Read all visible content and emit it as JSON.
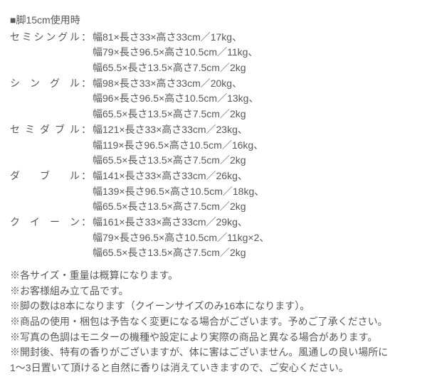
{
  "header": "■脚15cm使用時",
  "specs": [
    {
      "label": "セミシングル",
      "lines": [
        "幅81×長さ33×高さ33cm／17kg、",
        "幅79×長さ96.5×高さ10.5cm／11kg、",
        "幅65.5×長さ13.5×高さ7.5cm／2kg"
      ]
    },
    {
      "label": "シ　ン　グ　ル",
      "lines": [
        "幅98×長さ33×高さ33cm／20kg、",
        "幅96×長さ96.5×高さ10.5cm／13kg、",
        "幅65.5×長さ13.5×高さ7.5cm／2kg"
      ]
    },
    {
      "label": "セミダブル",
      "lines": [
        "幅121×長さ33×高さ33cm／23kg、",
        "幅119×長さ96.5×高さ10.5cm／16kg、",
        "幅65.5×長さ13.5×高さ7.5cm／2kg"
      ]
    },
    {
      "label": "ダ　　ブ　　ル",
      "lines": [
        "幅141×長さ33×高さ33cm／26kg、",
        "幅139×長さ96.5×高さ10.5cm／18kg、",
        "幅65.5×長さ13.5×高さ7.5cm／2kg"
      ]
    },
    {
      "label": "ク　イ　ー　ン",
      "lines": [
        "幅161×長さ33×高さ33cm／29kg、",
        "幅79×長さ96.5×高さ10.5cm／11kg×2、",
        "幅65.5×長さ13.5×高さ7.5cm／2kg"
      ]
    }
  ],
  "notes": [
    "※各サイズ・重量は概算になります。",
    "※お客様組み立て品です。",
    "※脚の数は8本になります（クイーンサイズのみ16本になります）。",
    "※商品の使用・梱包は予告なく変更になる場合がございます。予めご了承ください。",
    "※写真の色調はモニターの機種や設定により実際の商品と異なる場合があります。",
    "※開封後、特有の香りがございますが、体に害はございません。風通しの良い場所に",
    "1〜3日置いて頂けると自然に香りは消えていきますので、ご安心ください。"
  ]
}
